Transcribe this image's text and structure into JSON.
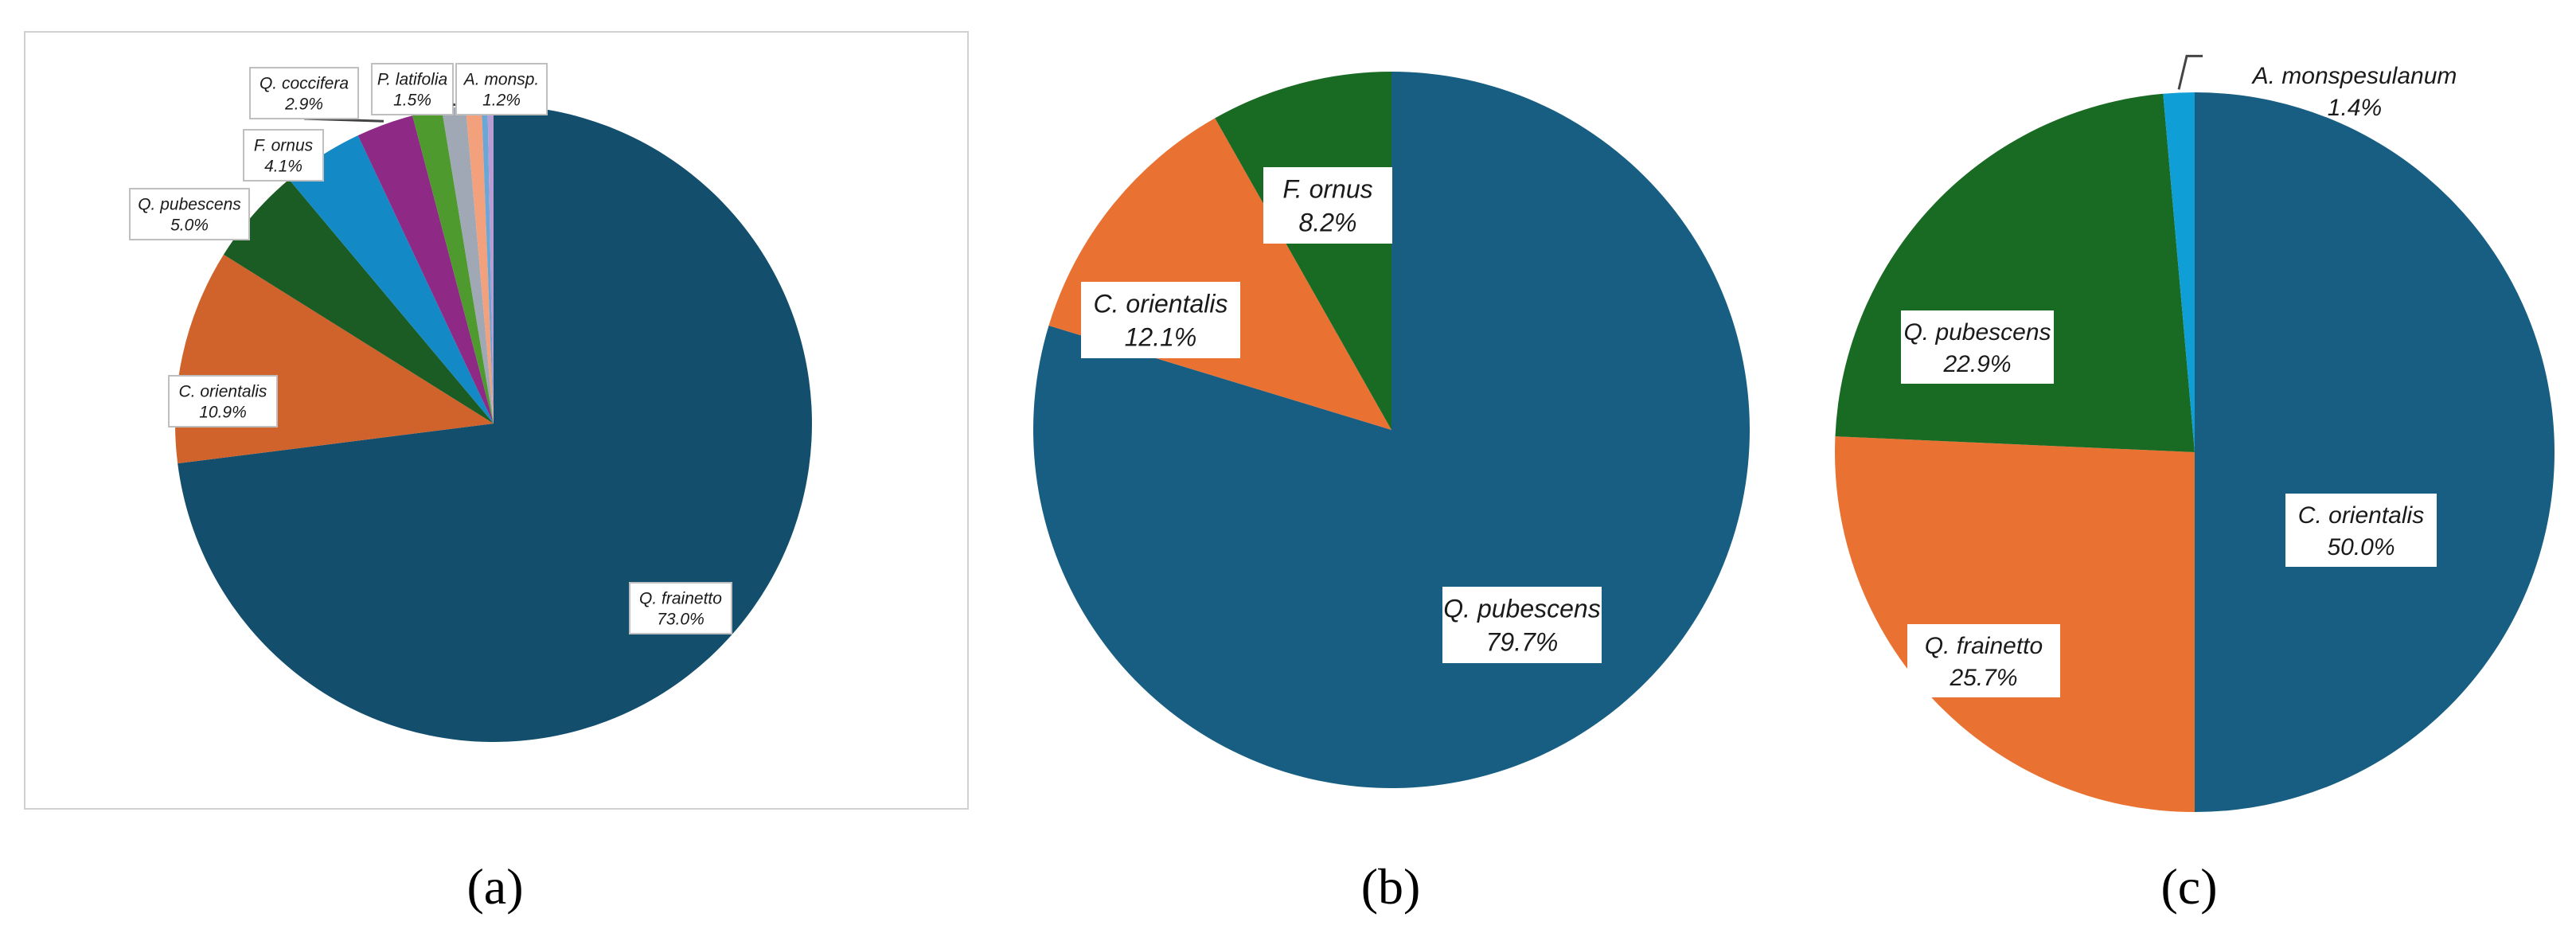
{
  "chart_data": [
    {
      "type": "pie",
      "caption": "(a)",
      "slices": [
        {
          "label": "Q. frainetto",
          "value": 73.0,
          "value_text": "73.0%",
          "color": "#134f6d"
        },
        {
          "label": "C. orientalis",
          "value": 10.9,
          "value_text": "10.9%",
          "color": "#d0622c"
        },
        {
          "label": "Q. pubescens",
          "value": 5.0,
          "value_text": "5.0%",
          "color": "#1a5c24"
        },
        {
          "label": "F. ornus",
          "value": 4.1,
          "value_text": "4.1%",
          "color": "#138ac5"
        },
        {
          "label": "Q. coccifera",
          "value": 2.9,
          "value_text": "2.9%",
          "color": "#8e2a86"
        },
        {
          "label": "P. latifolia",
          "value": 1.5,
          "value_text": "1.5%",
          "color": "#4e9a2e"
        },
        {
          "label": "A. monsp.",
          "value": 1.2,
          "value_text": "1.2%",
          "color": "#9fa8b4"
        },
        {
          "label": "",
          "value": 0.8,
          "value_text": "",
          "color": "#f2a17c"
        },
        {
          "label": "",
          "value": 0.3,
          "value_text": "",
          "color": "#6aa7d6"
        },
        {
          "label": "",
          "value": 0.3,
          "value_text": "",
          "color": "#b89cd2"
        }
      ]
    },
    {
      "type": "pie",
      "caption": "(b)",
      "slices": [
        {
          "label": "Q. pubescens",
          "value": 79.7,
          "value_text": "79.7%",
          "color": "#175e82"
        },
        {
          "label": "C. orientalis",
          "value": 12.1,
          "value_text": "12.1%",
          "color": "#e97132"
        },
        {
          "label": "F. ornus",
          "value": 8.2,
          "value_text": "8.2%",
          "color": "#196b24"
        }
      ]
    },
    {
      "type": "pie",
      "caption": "(c)",
      "slices": [
        {
          "label": "C. orientalis",
          "value": 50.0,
          "value_text": "50.0%",
          "color": "#175e82"
        },
        {
          "label": "Q. frainetto",
          "value": 25.7,
          "value_text": "25.7%",
          "color": "#e97132"
        },
        {
          "label": "Q. pubescens",
          "value": 22.9,
          "value_text": "22.9%",
          "color": "#196b24"
        },
        {
          "label": "A. monspesulanum",
          "value": 1.4,
          "value_text": "1.4%",
          "color": "#0f9ed5"
        }
      ]
    }
  ]
}
